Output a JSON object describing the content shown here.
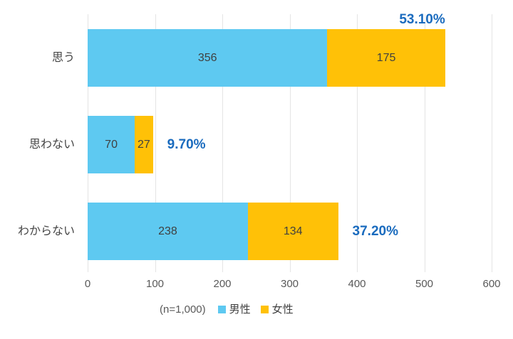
{
  "chart_data": {
    "type": "bar",
    "orientation": "horizontal",
    "stacked": true,
    "categories": [
      "思う",
      "思わない",
      "わからない"
    ],
    "series": [
      {
        "key": "male",
        "name": "男性",
        "color": "#5EC9F1",
        "values": [
          356,
          70,
          238
        ]
      },
      {
        "key": "female",
        "name": "女性",
        "color": "#FFC107",
        "values": [
          175,
          27,
          134
        ]
      }
    ],
    "total_percent_labels": [
      "53.10%",
      "9.70%",
      "37.20%"
    ],
    "x_ticks": [
      "0",
      "100",
      "200",
      "300",
      "400",
      "500",
      "600"
    ],
    "xlim": [
      0,
      600
    ],
    "grid": "vertical",
    "legend_position": "bottom",
    "sample_note": "(n=1,000)"
  },
  "legend": {
    "note": "(n=1,000)",
    "items": [
      {
        "key": "male",
        "label": "男性",
        "color": "#5EC9F1"
      },
      {
        "key": "female",
        "label": "女性",
        "color": "#FFC107"
      }
    ]
  },
  "colors": {
    "male_series": "#5EC9F1",
    "female_series": "#FFC107",
    "percent_label": "#1A6BBE",
    "bar_value_label": "#404040",
    "category_label": "#454545",
    "axis_tick_label": "#595959",
    "gridline": "#E4E4E4",
    "background": "#FFFFFF"
  }
}
